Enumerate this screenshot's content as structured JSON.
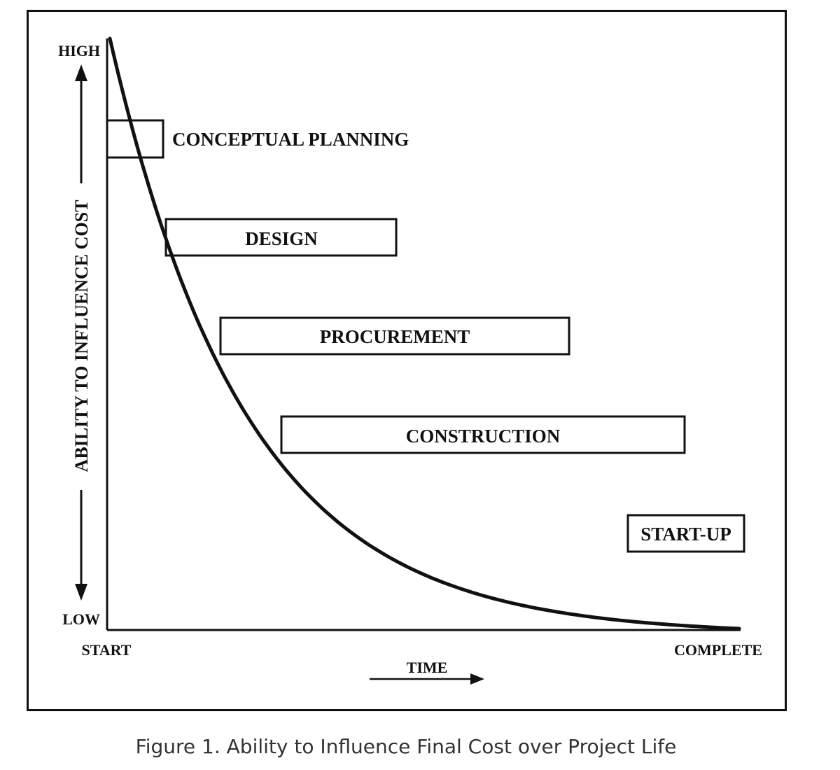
{
  "diagram": {
    "y_axis": {
      "label": "ABILITY TO INFLUENCE COST",
      "top_label": "HIGH",
      "bottom_label": "LOW"
    },
    "x_axis": {
      "label": "TIME",
      "start_label": "START",
      "end_label": "COMPLETE"
    },
    "phases": [
      {
        "id": "conceptual-planning",
        "label": "CONCEPTUAL PLANNING"
      },
      {
        "id": "design",
        "label": "DESIGN"
      },
      {
        "id": "procurement",
        "label": "PROCUREMENT"
      },
      {
        "id": "construction",
        "label": "CONSTRUCTION"
      },
      {
        "id": "start-up",
        "label": "START-UP"
      }
    ]
  },
  "caption": "Figure 1. Ability to Influence Final Cost over Project Life",
  "colors": {
    "ink": "#111111",
    "caption": "#333333",
    "background": "#ffffff"
  }
}
